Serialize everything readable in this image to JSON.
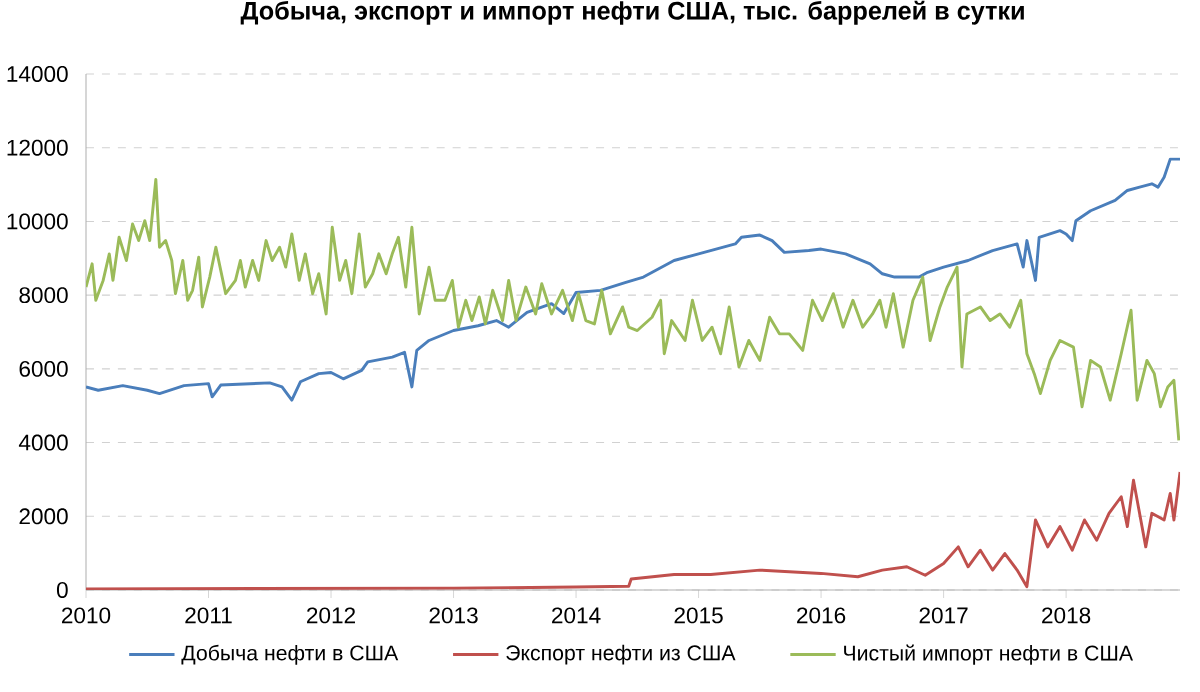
{
  "chart_data": {
    "type": "line",
    "title": "Добыча, экспорт и импорт нефти США, тыс. баррелей в сутки",
    "xlim": [
      2010,
      2018.93
    ],
    "xticks": [
      2010,
      2011,
      2012,
      2013,
      2014,
      2015,
      2016,
      2017,
      2018
    ],
    "ylim": [
      0,
      14000
    ],
    "yticks": [
      0,
      2000,
      4000,
      6000,
      8000,
      10000,
      12000,
      14000
    ],
    "grid": "y",
    "legend": "bottom",
    "series": [
      {
        "name": "Добыча нефти в США",
        "color": "#4a7ebb",
        "x": [
          2010.0,
          2010.1,
          2010.3,
          2010.5,
          2010.6,
          2010.8,
          2011.0,
          2011.03,
          2011.1,
          2011.5,
          2011.6,
          2011.68,
          2011.75,
          2011.9,
          2012.0,
          2012.1,
          2012.25,
          2012.3,
          2012.5,
          2012.6,
          2012.66,
          2012.7,
          2012.8,
          2013.0,
          2013.2,
          2013.35,
          2013.45,
          2013.6,
          2013.8,
          2013.9,
          2014.0,
          2014.2,
          2014.4,
          2014.55,
          2014.8,
          2015.0,
          2015.3,
          2015.35,
          2015.5,
          2015.6,
          2015.7,
          2015.9,
          2016.0,
          2016.2,
          2016.4,
          2016.5,
          2016.6,
          2016.8,
          2016.87,
          2017.0,
          2017.2,
          2017.4,
          2017.6,
          2017.65,
          2017.68,
          2017.75,
          2017.78,
          2017.95,
          2018.0,
          2018.05,
          2018.08,
          2018.2,
          2018.4,
          2018.5,
          2018.6,
          2018.7,
          2018.75,
          2018.8,
          2018.85,
          2018.93
        ],
        "values": [
          5510,
          5420,
          5545,
          5420,
          5330,
          5545,
          5600,
          5240,
          5560,
          5620,
          5510,
          5150,
          5650,
          5870,
          5900,
          5730,
          5960,
          6190,
          6320,
          6450,
          5510,
          6500,
          6770,
          7040,
          7170,
          7310,
          7130,
          7530,
          7770,
          7500,
          8070,
          8130,
          8340,
          8490,
          8940,
          9120,
          9390,
          9570,
          9630,
          9480,
          9160,
          9210,
          9250,
          9120,
          8850,
          8580,
          8490,
          8490,
          8620,
          8760,
          8940,
          9210,
          9390,
          8760,
          9480,
          8400,
          9570,
          9750,
          9660,
          9480,
          10020,
          10290,
          10570,
          10840,
          10930,
          11020,
          10930,
          11200,
          11690,
          11690
        ]
      },
      {
        "name": "Экспорт нефти из США",
        "color": "#c0504d",
        "x": [
          2010.0,
          2013.0,
          2014.0,
          2014.43,
          2014.45,
          2014.8,
          2015.1,
          2015.5,
          2016.0,
          2016.3,
          2016.5,
          2016.7,
          2016.85,
          2017.0,
          2017.12,
          2017.2,
          2017.3,
          2017.4,
          2017.5,
          2017.6,
          2017.68,
          2017.75,
          2017.85,
          2017.95,
          2018.05,
          2018.15,
          2018.25,
          2018.35,
          2018.45,
          2018.5,
          2018.55,
          2018.65,
          2018.7,
          2018.8,
          2018.85,
          2018.88,
          2018.93
        ],
        "values": [
          30,
          50,
          80,
          100,
          300,
          420,
          420,
          540,
          450,
          360,
          540,
          630,
          400,
          720,
          1170,
          630,
          1080,
          540,
          990,
          540,
          90,
          1900,
          1170,
          1720,
          1080,
          1900,
          1350,
          2080,
          2530,
          1720,
          2980,
          1170,
          2080,
          1900,
          2620,
          1900,
          3200
        ]
      },
      {
        "name": "Чистый импорт нефти в США",
        "color": "#9bbb59",
        "x": [
          2010.0,
          2010.05,
          2010.08,
          2010.14,
          2010.19,
          2010.22,
          2010.27,
          2010.33,
          2010.38,
          2010.43,
          2010.48,
          2010.52,
          2010.57,
          2010.6,
          2010.65,
          2010.7,
          2010.73,
          2010.79,
          2010.83,
          2010.87,
          2010.92,
          2010.95,
          2011.01,
          2011.06,
          2011.14,
          2011.22,
          2011.26,
          2011.3,
          2011.36,
          2011.41,
          2011.47,
          2011.52,
          2011.58,
          2011.63,
          2011.68,
          2011.74,
          2011.79,
          2011.85,
          2011.9,
          2011.96,
          2012.01,
          2012.07,
          2012.12,
          2012.17,
          2012.23,
          2012.28,
          2012.34,
          2012.39,
          2012.45,
          2012.5,
          2012.55,
          2012.61,
          2012.66,
          2012.72,
          2012.8,
          2012.85,
          2012.93,
          2012.99,
          2013.04,
          2013.1,
          2013.15,
          2013.21,
          2013.26,
          2013.32,
          2013.4,
          2013.45,
          2013.51,
          2013.59,
          2013.67,
          2013.72,
          2013.8,
          2013.89,
          2013.97,
          2014.02,
          2014.08,
          2014.15,
          2014.21,
          2014.28,
          2014.38,
          2014.43,
          2014.5,
          2014.62,
          2014.69,
          2014.72,
          2014.78,
          2014.89,
          2014.95,
          2015.03,
          2015.11,
          2015.18,
          2015.25,
          2015.33,
          2015.41,
          2015.5,
          2015.58,
          2015.66,
          2015.74,
          2015.85,
          2015.93,
          2016.01,
          2016.1,
          2016.18,
          2016.26,
          2016.34,
          2016.42,
          2016.48,
          2016.53,
          2016.59,
          2016.67,
          2016.75,
          2016.83,
          2016.89,
          2016.97,
          2017.03,
          2017.11,
          2017.15,
          2017.19,
          2017.3,
          2017.38,
          2017.46,
          2017.54,
          2017.63,
          2017.68,
          2017.74,
          2017.79,
          2017.87,
          2017.95,
          2018.06,
          2018.13,
          2018.2,
          2018.28,
          2018.36,
          2018.45,
          2018.53,
          2018.58,
          2018.66,
          2018.72,
          2018.77,
          2018.83,
          2018.88,
          2018.92
        ],
        "values": [
          8220,
          8850,
          7860,
          8400,
          9120,
          8400,
          9570,
          8940,
          9930,
          9480,
          10020,
          9480,
          11140,
          9300,
          9480,
          8940,
          8040,
          8940,
          7860,
          8130,
          9030,
          7680,
          8490,
          9300,
          8040,
          8400,
          8940,
          8220,
          8940,
          8400,
          9480,
          8940,
          9300,
          8760,
          9660,
          8400,
          9120,
          8040,
          8580,
          7490,
          9840,
          8400,
          8940,
          8040,
          9660,
          8220,
          8580,
          9120,
          8580,
          9120,
          9570,
          8220,
          9840,
          7490,
          8760,
          7860,
          7860,
          8400,
          7130,
          7860,
          7310,
          7950,
          7220,
          8130,
          7310,
          8400,
          7310,
          8220,
          7490,
          8310,
          7490,
          8130,
          7310,
          8040,
          7310,
          7220,
          8130,
          6950,
          7680,
          7130,
          7040,
          7400,
          7860,
          6410,
          7310,
          6770,
          7860,
          6770,
          7130,
          6410,
          7680,
          6050,
          6770,
          6230,
          7400,
          6950,
          6950,
          6500,
          7860,
          7310,
          8040,
          7130,
          7860,
          7130,
          7490,
          7860,
          7130,
          8040,
          6590,
          7860,
          8490,
          6770,
          7680,
          8220,
          8760,
          6050,
          7490,
          7680,
          7310,
          7490,
          7130,
          7860,
          6410,
          5870,
          5330,
          6230,
          6770,
          6590,
          4970,
          6230,
          6050,
          5150,
          6410,
          7590,
          5150,
          6230,
          5870,
          4970,
          5510,
          5690,
          4060
        ]
      }
    ]
  }
}
